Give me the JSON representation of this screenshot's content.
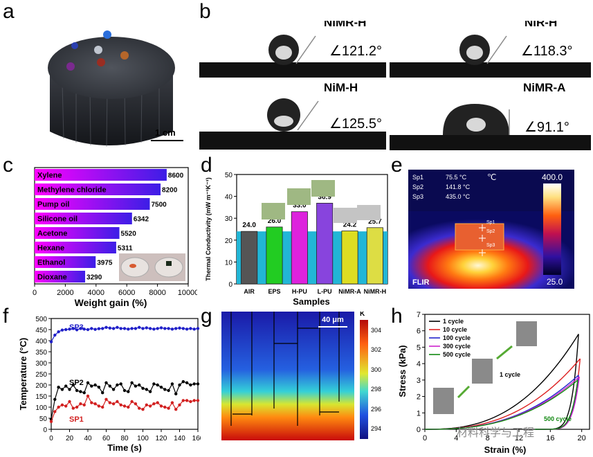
{
  "panel_labels": {
    "a": "a",
    "b": "b",
    "c": "c",
    "d": "d",
    "e": "e",
    "f": "f",
    "g": "g",
    "h": "h"
  },
  "panel_a": {
    "scale": "1 cm"
  },
  "panel_b": {
    "samples": [
      {
        "name": "NiMR-H",
        "angle": "∠121.2°"
      },
      {
        "name": "NiR-H",
        "angle": "∠118.3°"
      },
      {
        "name": "NiM-H",
        "angle": "∠125.5°"
      },
      {
        "name": "NiMR-A",
        "angle": "∠91.1°"
      }
    ]
  },
  "panel_e": {
    "readouts": [
      {
        "name": "Sp1",
        "value": "75.5 °C"
      },
      {
        "name": "Sp2",
        "value": "141.8 °C"
      },
      {
        "name": "Sp3",
        "value": "435.0 °C"
      }
    ],
    "unit": "℃",
    "max": "400.0",
    "min": "25.0",
    "brand": "FLIR",
    "spots": [
      "Sp1",
      "Sp2",
      "Sp3"
    ]
  },
  "panel_g": {
    "scale": "40 μm",
    "unit": "K",
    "ticks": [
      "304",
      "302",
      "300",
      "298",
      "296",
      "294"
    ]
  },
  "watermark": "材料科学与工程",
  "chart_data": [
    {
      "panel": "c",
      "type": "bar",
      "orientation": "horizontal",
      "categories": [
        "Xylene",
        "Methylene chloride",
        "Pump oil",
        "Silicone oil",
        "Acetone",
        "Hexane",
        "Ethanol",
        "Dioxane"
      ],
      "values": [
        8600,
        8200,
        7500,
        6342,
        5520,
        5311,
        3975,
        3290
      ],
      "xlabel": "Weight gain (%)",
      "xlim": [
        0,
        10000
      ],
      "xticks": [
        "0",
        "2000",
        "4000",
        "6000",
        "8000",
        "10000"
      ],
      "colors": {
        "start": "#ff00ff",
        "end": "#3c1ee6"
      }
    },
    {
      "panel": "d",
      "type": "bar",
      "categories": [
        "AIR",
        "EPS",
        "H-PU",
        "L-PU",
        "NiMR-A",
        "NiMR-H"
      ],
      "values": [
        24.0,
        26.0,
        33.0,
        36.9,
        24.2,
        25.7
      ],
      "labels": [
        "24.0",
        "26.0",
        "33.0",
        "36.9",
        "24.2",
        "25.7"
      ],
      "xlabel": "Samples",
      "ylabel": "Thermal Conductivity (mW m⁻¹K⁻¹)",
      "ylim": [
        0,
        50
      ],
      "yticks": [
        "0",
        "10",
        "20",
        "30",
        "40",
        "50"
      ],
      "colors": [
        "#555555",
        "#22cc22",
        "#dd22dd",
        "#8844dd",
        "#dddd22",
        "#dddd44"
      ],
      "band_color": "#22b6d6"
    },
    {
      "panel": "f",
      "type": "line",
      "xlabel": "Time (s)",
      "ylabel": "Temperature (°C)",
      "xlim": [
        0,
        160
      ],
      "ylim": [
        0,
        500
      ],
      "xticks": [
        "0",
        "20",
        "40",
        "60",
        "80",
        "100",
        "120",
        "140",
        "160"
      ],
      "yticks": [
        "0",
        "50",
        "100",
        "150",
        "200",
        "250",
        "300",
        "350",
        "400",
        "450",
        "500"
      ],
      "series": [
        {
          "name": "SP3",
          "color": "#1f1fc8",
          "x": [
            0,
            4,
            8,
            12,
            16,
            20,
            24,
            28,
            32,
            36,
            40,
            44,
            48,
            52,
            56,
            60,
            64,
            68,
            72,
            76,
            80,
            84,
            88,
            92,
            96,
            100,
            104,
            108,
            112,
            116,
            120,
            124,
            128,
            132,
            136,
            140,
            144,
            148,
            152,
            156,
            160
          ],
          "y": [
            395,
            425,
            440,
            448,
            450,
            452,
            455,
            449,
            455,
            452,
            450,
            455,
            451,
            454,
            455,
            460,
            457,
            455,
            460,
            455,
            455,
            452,
            455,
            455,
            460,
            455,
            458,
            455,
            452,
            455,
            458,
            455,
            455,
            452,
            455,
            457,
            455,
            452,
            455,
            452,
            455
          ]
        },
        {
          "name": "SP2",
          "color": "#000000",
          "x": [
            0,
            4,
            8,
            12,
            16,
            20,
            24,
            28,
            32,
            36,
            40,
            44,
            48,
            52,
            56,
            60,
            64,
            68,
            72,
            76,
            80,
            84,
            88,
            92,
            96,
            100,
            104,
            108,
            112,
            116,
            120,
            124,
            128,
            132,
            136,
            140,
            144,
            148,
            152,
            156,
            160
          ],
          "y": [
            45,
            135,
            190,
            180,
            195,
            180,
            200,
            175,
            170,
            165,
            210,
            195,
            200,
            190,
            165,
            210,
            195,
            180,
            200,
            205,
            175,
            170,
            210,
            195,
            200,
            185,
            180,
            170,
            205,
            200,
            190,
            180,
            175,
            205,
            160,
            200,
            215,
            210,
            200,
            205,
            205
          ]
        },
        {
          "name": "SP1",
          "color": "#d22020",
          "x": [
            0,
            4,
            8,
            12,
            16,
            20,
            24,
            28,
            32,
            36,
            40,
            44,
            48,
            52,
            56,
            60,
            64,
            68,
            72,
            76,
            80,
            84,
            88,
            92,
            96,
            100,
            104,
            108,
            112,
            116,
            120,
            124,
            128,
            132,
            136,
            140,
            144,
            148,
            152,
            156,
            160
          ],
          "y": [
            35,
            80,
            100,
            110,
            105,
            125,
            95,
            100,
            115,
            110,
            150,
            120,
            115,
            105,
            100,
            135,
            120,
            115,
            125,
            110,
            105,
            100,
            125,
            115,
            95,
            90,
            110,
            105,
            115,
            120,
            105,
            100,
            95,
            120,
            90,
            110,
            130,
            130,
            125,
            130,
            130
          ]
        }
      ]
    },
    {
      "panel": "h",
      "type": "line",
      "xlabel": "Strain (%)",
      "ylabel": "Stress (kPa)",
      "xlim": [
        0,
        21
      ],
      "ylim": [
        0,
        7
      ],
      "xticks": [
        "0",
        "4",
        "8",
        "12",
        "16",
        "20"
      ],
      "yticks": [
        "0",
        "1",
        "2",
        "3",
        "4",
        "5",
        "6",
        "7"
      ],
      "series": [
        {
          "name": "1 cycle",
          "color": "#000000",
          "peak": [
            19.6,
            5.8
          ]
        },
        {
          "name": "10 cycle",
          "color": "#dd2222",
          "peak": [
            19.8,
            4.3
          ]
        },
        {
          "name": "100 cycle",
          "color": "#2222cc",
          "peak": [
            19.6,
            3.3
          ]
        },
        {
          "name": "300 cycle",
          "color": "#cc22cc",
          "peak": [
            19.7,
            3.2
          ]
        },
        {
          "name": "500 cycle",
          "color": "#118811",
          "peak": [
            19.5,
            3.0
          ]
        }
      ],
      "annotations": [
        "1 cycle",
        "500 cycle"
      ]
    }
  ]
}
